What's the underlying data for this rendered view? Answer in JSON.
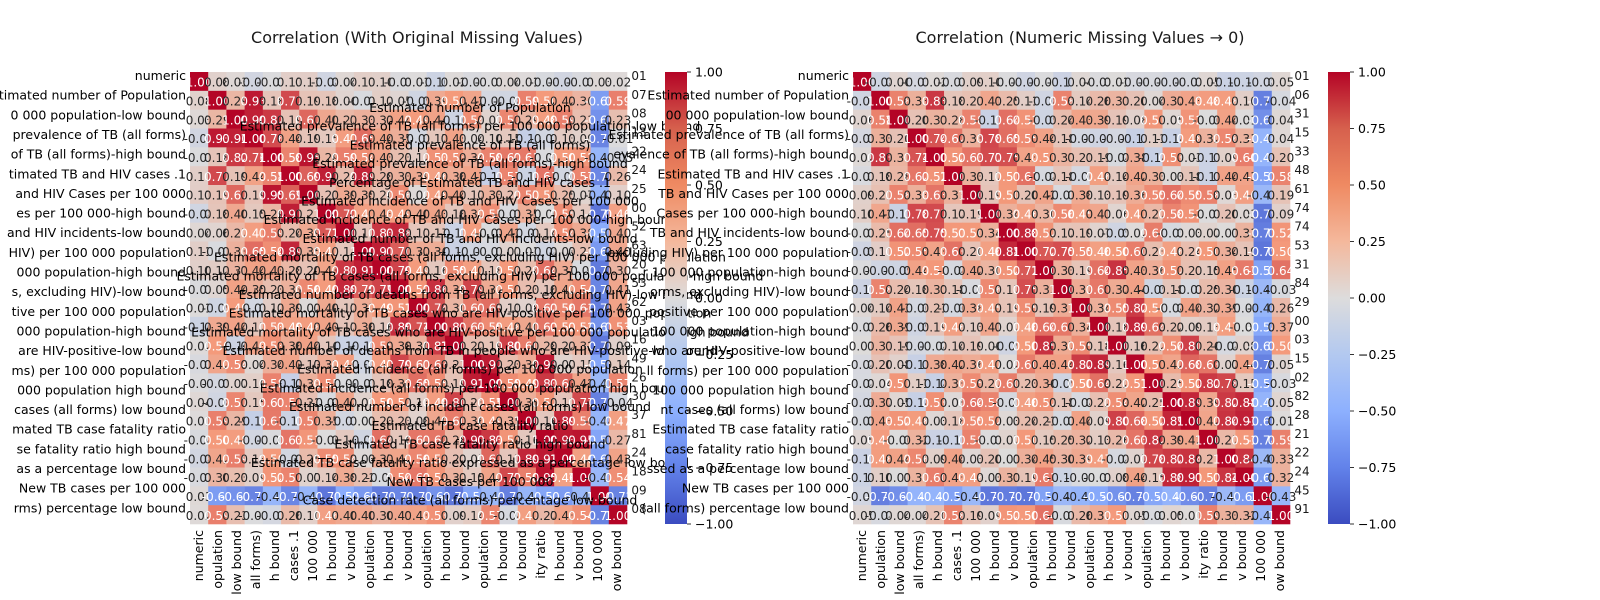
{
  "chart_data": [
    {
      "type": "heatmap",
      "title": "Correlation (With Original Missing Values)",
      "colormap": "coolwarm",
      "vmin": -1.0,
      "vmax": 1.0,
      "colorbar_ticks": [
        "1.00",
        "0.75",
        "0.50",
        "0.25",
        "0.00",
        "−0.25",
        "−0.50",
        "−0.75",
        "−1.00"
      ],
      "visible_row_labels": [
        "numeric",
        "Estimated number of Population",
        "0 000 population-low bound",
        "prevalence of TB (all forms)",
        "of TB (all forms)-high bound",
        "timated TB and HIV cases .1",
        "and HIV Cases per 100 000",
        "es per 100 000-high bound",
        "and HIV incidents-low bound",
        "HIV) per 100 000 population",
        "000 population-high bound",
        "s, excluding HIV)-low bound",
        "tive per 100 000 population",
        "000 population-high bound",
        "are HIV-positive-low bound",
        "ms) per 100 000 population",
        "000 population high bound",
        "cases (all forms) low bound",
        "mated TB case fatality ratio",
        "se fatality ratio high bound",
        "as a percentage low bound",
        "New TB cases per 100 000",
        "rms) percentage low bound"
      ],
      "visible_x_labels": [
        "numeric",
        "opulation",
        "low bound",
        "all forms)",
        "h bound",
        "cases .1",
        "100 000",
        "h bound",
        "v bound",
        "opulation",
        "h bound",
        "v bound",
        "opulation",
        "h bound",
        "v bound",
        "opulation",
        "h bound",
        "v bound",
        "ity ratio",
        "h bound",
        "v bound",
        "100 000",
        "ow bound"
      ],
      "overlay_labels": [
        "Estimated number of Population",
        "Estimated prevalence of TB (all forms) per 100 000 population-low bound",
        "Estimated prevalence of TB (all forms)",
        "Estimated prevalence of TB (all forms)-high bound",
        "Percentage of Estimated TB and HIV cases .1",
        "Estimated incidence of TB and HIV Cases per 100 000",
        "Estimated incidence of TB and HIV Cases per 100 000-high bound",
        "Estimated number of TB and HIV incidents-low bound",
        "Estimated mortality of TB cases (all forms, excluding HIV) per 100 000 population",
        "Estimated mortality of TB cases (all forms, excluding HIV) per 100 000 population-high bound",
        "Estimated number of deaths from TB (all forms, excluding HIV)-low bound",
        "Estimated mortality of TB cases who are HIV-positive per 100 000 population",
        "Estimated mortality of TB cases who are HIV-positive per 100 000 population-high bound",
        "Estimated number of deaths from TB in people who are HIV-positive-low bound",
        "Estimated incidence (all forms) per 100 000 population",
        "Estimated incidence (all forms) per 100 000 population high bound",
        "Estimated number of incident cases (all forms) low bound",
        "Estimated TB case fatality ratio",
        "Estimated TB case fatality ratio high bound",
        "Estimated TB case fatality ratio expressed as a percentage low bound",
        "New TB cases per 100 000",
        "Case detection rate (all forms) percentage low bound"
      ],
      "right_edge_values": [
        "01",
        "07",
        "08",
        "13",
        "22",
        "24",
        "25",
        "00",
        "52",
        "63",
        "20",
        "53",
        "62",
        "03",
        "16",
        "49",
        "26",
        "30",
        "37",
        "81",
        "24",
        "18",
        "09",
        "08"
      ]
    },
    {
      "type": "heatmap",
      "title": "Correlation (Numeric Missing Values → 0)",
      "colormap": "coolwarm",
      "vmin": -1.0,
      "vmax": 1.0,
      "colorbar_ticks": [
        "1.00",
        "0.75",
        "0.50",
        "0.25",
        "0.00",
        "−0.25",
        "−0.50",
        "−0.75",
        "−1.00"
      ],
      "visible_row_labels": [
        "numeric",
        "Estimated number of Population",
        "00 000 population-low bound",
        "Estimated prevalence of TB (all forms)",
        "evalence of TB (all forms)-high bound",
        "Estimated TB and HIV cases .1",
        "TB and HIV Cases per 100 000",
        "Cases per 100 000-high bound",
        "TB and HIV incidents-low bound",
        "excluding HIV) per 100 000 population",
        "r 100 000 population-high bound",
        "orms, excluding HIV)-low bound",
        "positive per 100 000 population",
        "100 000 population-high bound",
        "who are HIV-positive-low bound",
        "ll forms) per 100 000 population",
        "100 000 population high bound",
        "nt cases (all forms) low bound",
        "Estimated TB case fatality ratio",
        "case fatality ratio high bound",
        "ssed as a percentage low bound",
        "New TB cases per 100 000",
        "(all forms) percentage low bound"
      ],
      "visible_x_labels": [
        "numeric",
        "opulation",
        "low bound",
        "all forms)",
        "h bound",
        "cases .1",
        "100 000",
        "h bound",
        "v bound",
        "opulation",
        "h bound",
        "v bound",
        "opulation",
        "h bound",
        "v bound",
        "opulation",
        "h bound",
        "v bound",
        "ity ratio",
        "h bound",
        "v bound",
        "100 000",
        "ow bound"
      ],
      "right_edge_values": [
        "01",
        "06",
        "31",
        "15",
        "33",
        "48",
        "61",
        "74",
        "74",
        "53",
        "31",
        "84",
        "29",
        "00",
        "03",
        "15",
        "02",
        "82",
        "28",
        "21",
        "22",
        "24",
        "45",
        "91"
      ]
    }
  ]
}
